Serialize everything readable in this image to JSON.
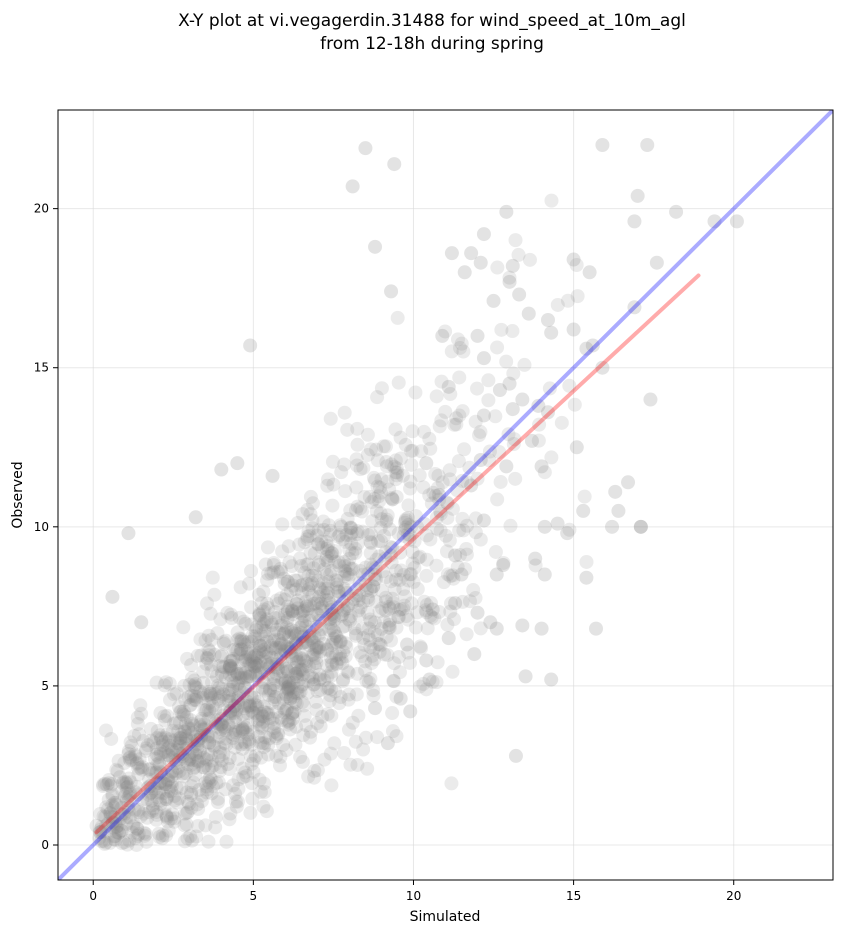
{
  "chart_data": {
    "type": "scatter",
    "title_line1": "X-Y plot at vi.vegagerdin.31488 for wind_speed_at_10m_agl",
    "title_line2": "from 12-18h during spring",
    "xlabel": "Simulated",
    "ylabel": "Observed",
    "xlim": [
      -1.1,
      23.1
    ],
    "ylim": [
      -1.1,
      23.1
    ],
    "xticks": [
      0,
      5,
      10,
      15,
      20
    ],
    "yticks": [
      0,
      5,
      10,
      15,
      20
    ],
    "grid": true,
    "series": [
      {
        "role": "observations",
        "color": "#808080",
        "opacity": 0.22,
        "x": [
          8.5,
          9.4,
          15.9,
          17.3,
          8.1,
          17.0,
          20.1,
          19.4,
          18.2,
          16.9,
          17.6,
          12.9,
          8.8,
          12.2,
          11.8,
          11.6,
          12.1,
          13.1,
          13.0,
          15.0,
          15.5,
          9.3,
          12.5,
          13.3,
          13.6,
          14.2,
          11.2,
          12.0,
          10.9,
          15.4,
          16.9,
          15.0,
          15.9,
          17.4,
          17.1,
          16.7,
          15.3,
          14.1,
          12.6,
          13.4,
          4.9,
          5.6,
          4.0,
          4.5,
          3.2,
          1.1,
          0.6,
          1.5,
          16.2,
          17.1,
          16.4,
          15.4,
          15.7,
          14.8,
          14.3,
          12.4,
          9.9,
          10.5,
          13.2,
          13.5,
          14.0,
          14.1,
          12.8,
          13.8,
          12.6,
          12.0,
          11.3,
          10.6,
          15.6,
          14.3,
          13.9,
          12.2,
          13.0,
          11.1,
          12.2,
          12.7,
          13.1,
          13.4,
          13.7,
          15.1,
          16.3,
          12.1,
          12.9,
          11.8,
          10.8,
          10.4,
          14.2,
          14.0,
          14.5,
          12.2,
          11.3,
          11.5,
          11.9,
          11.1,
          9.8,
          10.4,
          8.8,
          9.6,
          9.2
        ],
        "y": [
          21.9,
          21.4,
          22.0,
          22.0,
          20.7,
          20.4,
          19.6,
          19.6,
          19.9,
          19.6,
          18.3,
          19.9,
          18.8,
          19.2,
          18.6,
          18.0,
          18.3,
          18.2,
          17.7,
          18.4,
          18.0,
          17.4,
          17.1,
          17.3,
          16.7,
          16.5,
          18.6,
          16.0,
          16.0,
          15.6,
          16.9,
          16.2,
          15.0,
          14.0,
          10.0,
          11.4,
          10.5,
          10.0,
          6.8,
          6.9,
          15.7,
          11.6,
          11.8,
          12.0,
          10.3,
          9.8,
          7.8,
          7.0,
          10.0,
          10.0,
          10.5,
          8.4,
          6.8,
          9.8,
          5.2,
          7.0,
          4.2,
          5.2,
          2.8,
          5.3,
          6.8,
          8.5,
          8.8,
          9.0,
          8.5,
          7.3,
          7.6,
          7.4,
          15.7,
          16.1,
          13.8,
          13.5,
          14.5,
          14.4,
          15.3,
          14.3,
          13.7,
          14.0,
          12.7,
          12.5,
          11.1,
          12.1,
          11.9,
          11.3,
          11.0,
          12.0,
          13.6,
          11.9,
          10.1,
          10.2,
          9.1,
          8.5,
          6.0,
          6.5,
          6.3,
          5.8,
          4.3,
          4.6,
          3.2
        ]
      },
      {
        "role": "identity",
        "color": "#0000ff",
        "opacity": 0.33,
        "x": [
          -1.1,
          23.1
        ],
        "y": [
          -1.1,
          23.1
        ]
      },
      {
        "role": "fit",
        "color": "#ff0000",
        "opacity": 0.33,
        "x": [
          0.1,
          18.9
        ],
        "y": [
          0.4,
          17.9
        ]
      }
    ]
  }
}
